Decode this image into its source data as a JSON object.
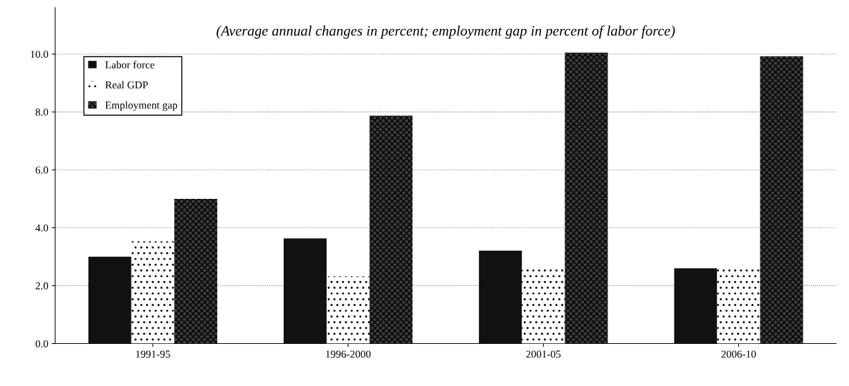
{
  "chart_data": {
    "type": "bar",
    "title": "(Average annual changes in percent; employment gap in percent of labor force)",
    "categories": [
      "1991-95",
      "1996-2000",
      "2001-05",
      "2006-10"
    ],
    "series": [
      {
        "name": "Labor force",
        "color": "#111111",
        "values": [
          3.0,
          3.63,
          3.21,
          2.6
        ]
      },
      {
        "name": "Real GDP",
        "color": "#ffffff",
        "values": [
          3.53,
          2.32,
          2.66,
          2.6
        ]
      },
      {
        "name": "Employment gap",
        "color": "#3a3a3a",
        "values": [
          5.0,
          7.87,
          10.05,
          9.92
        ]
      }
    ],
    "ylim": [
      0,
      11.6
    ],
    "yticks": [
      {
        "value": 0,
        "label": "0.0"
      },
      {
        "value": 2,
        "label": "2.0"
      },
      {
        "value": 4,
        "label": "4.0"
      },
      {
        "value": 6,
        "label": "6.0"
      },
      {
        "value": 8,
        "label": "8.0"
      },
      {
        "value": 10,
        "label": "10.0"
      }
    ],
    "grid": "y",
    "legend": "top left"
  }
}
